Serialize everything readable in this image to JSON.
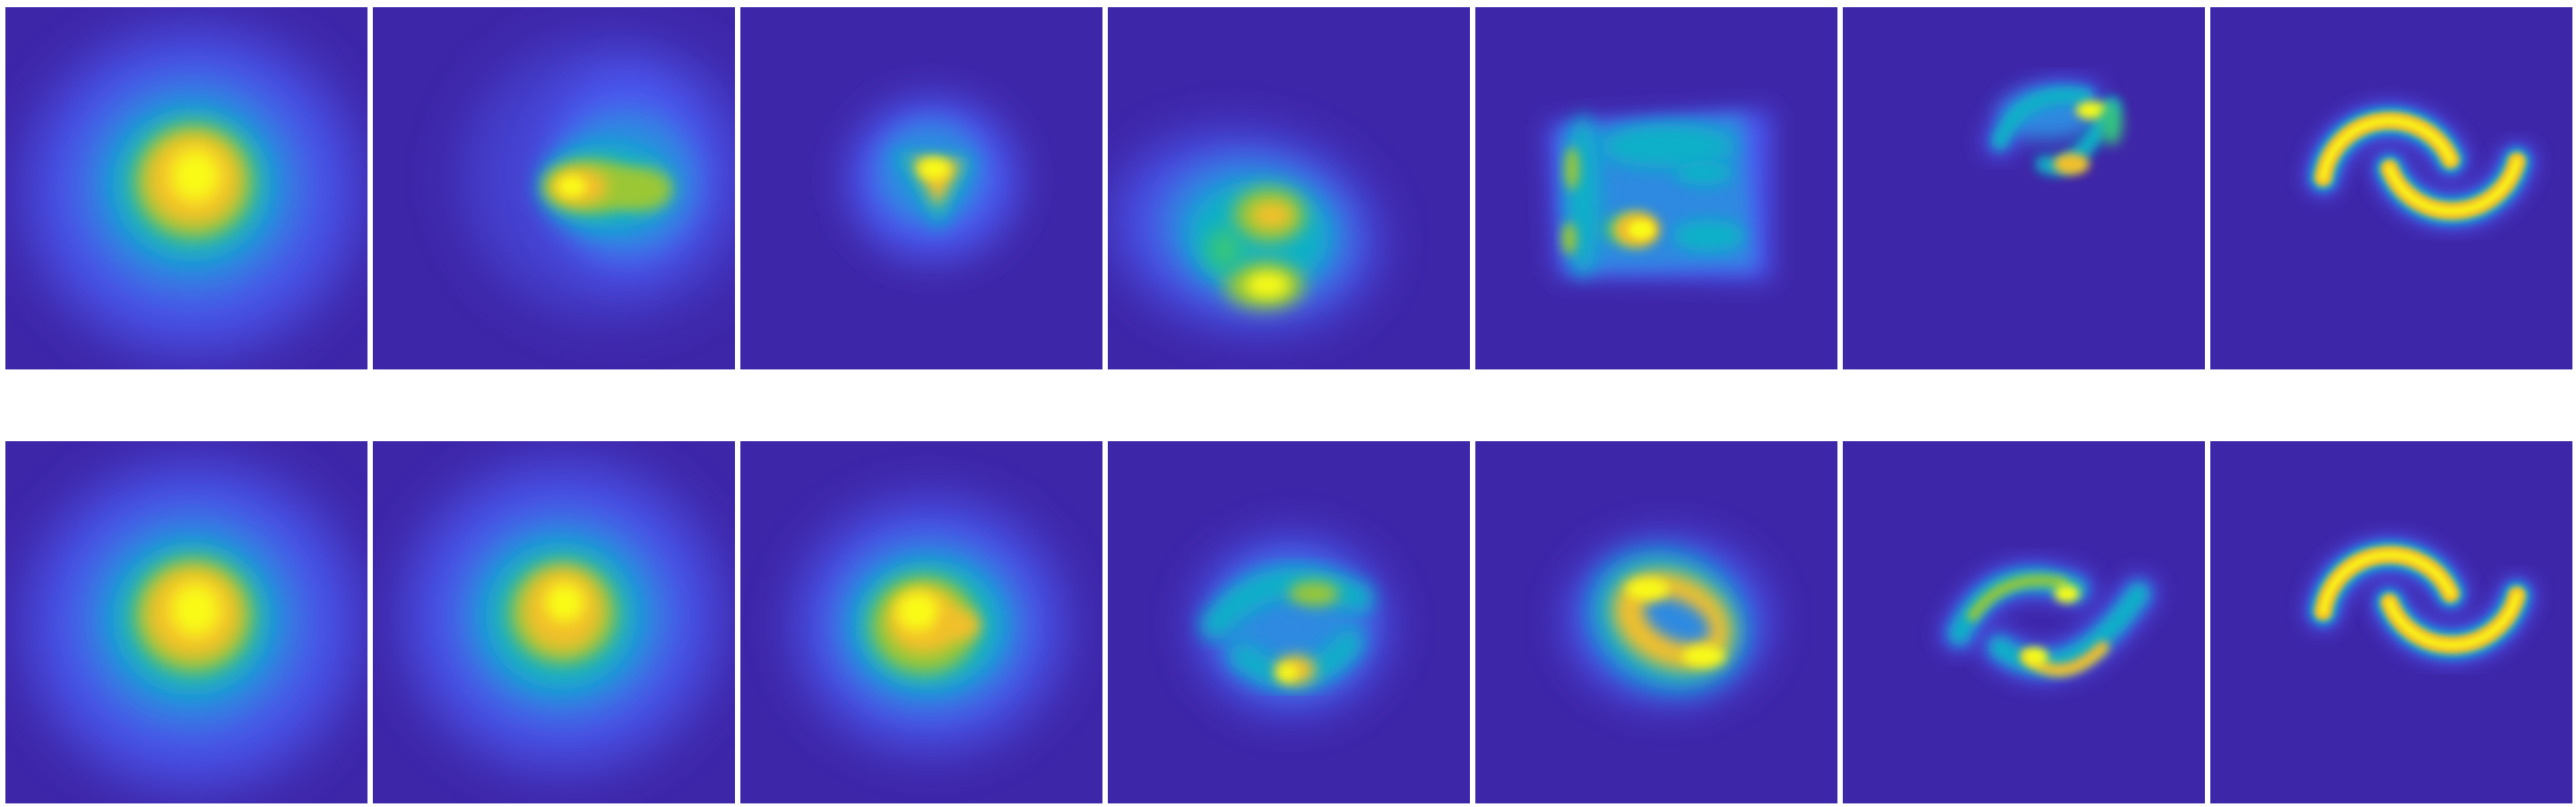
{
  "figure": {
    "background_color": "#3e26a8",
    "colormap": [
      "#3e26a8",
      "#4b58f1",
      "#2f8ae0",
      "#11b0c8",
      "#36c47f",
      "#9bc734",
      "#f3c02c",
      "#f9fb15"
    ],
    "rows": [
      {
        "panels": [
          {
            "shape": "broad-diffuse-blob"
          },
          {
            "shape": "horizontal-streak-blob"
          },
          {
            "shape": "small-triangular-blob"
          },
          {
            "shape": "lobed-blob-lower-left"
          },
          {
            "shape": "rectangular-speckled-blob"
          },
          {
            "shape": "small-s-fragments"
          },
          {
            "shape": "two-moons"
          }
        ]
      },
      {
        "panels": [
          {
            "shape": "broad-diffuse-blob"
          },
          {
            "shape": "diffuse-blob"
          },
          {
            "shape": "irregular-blob"
          },
          {
            "shape": "crescent-forming-blob"
          },
          {
            "shape": "ring-blob"
          },
          {
            "shape": "s-shaped-crescents"
          },
          {
            "shape": "two-moons"
          }
        ]
      }
    ]
  }
}
